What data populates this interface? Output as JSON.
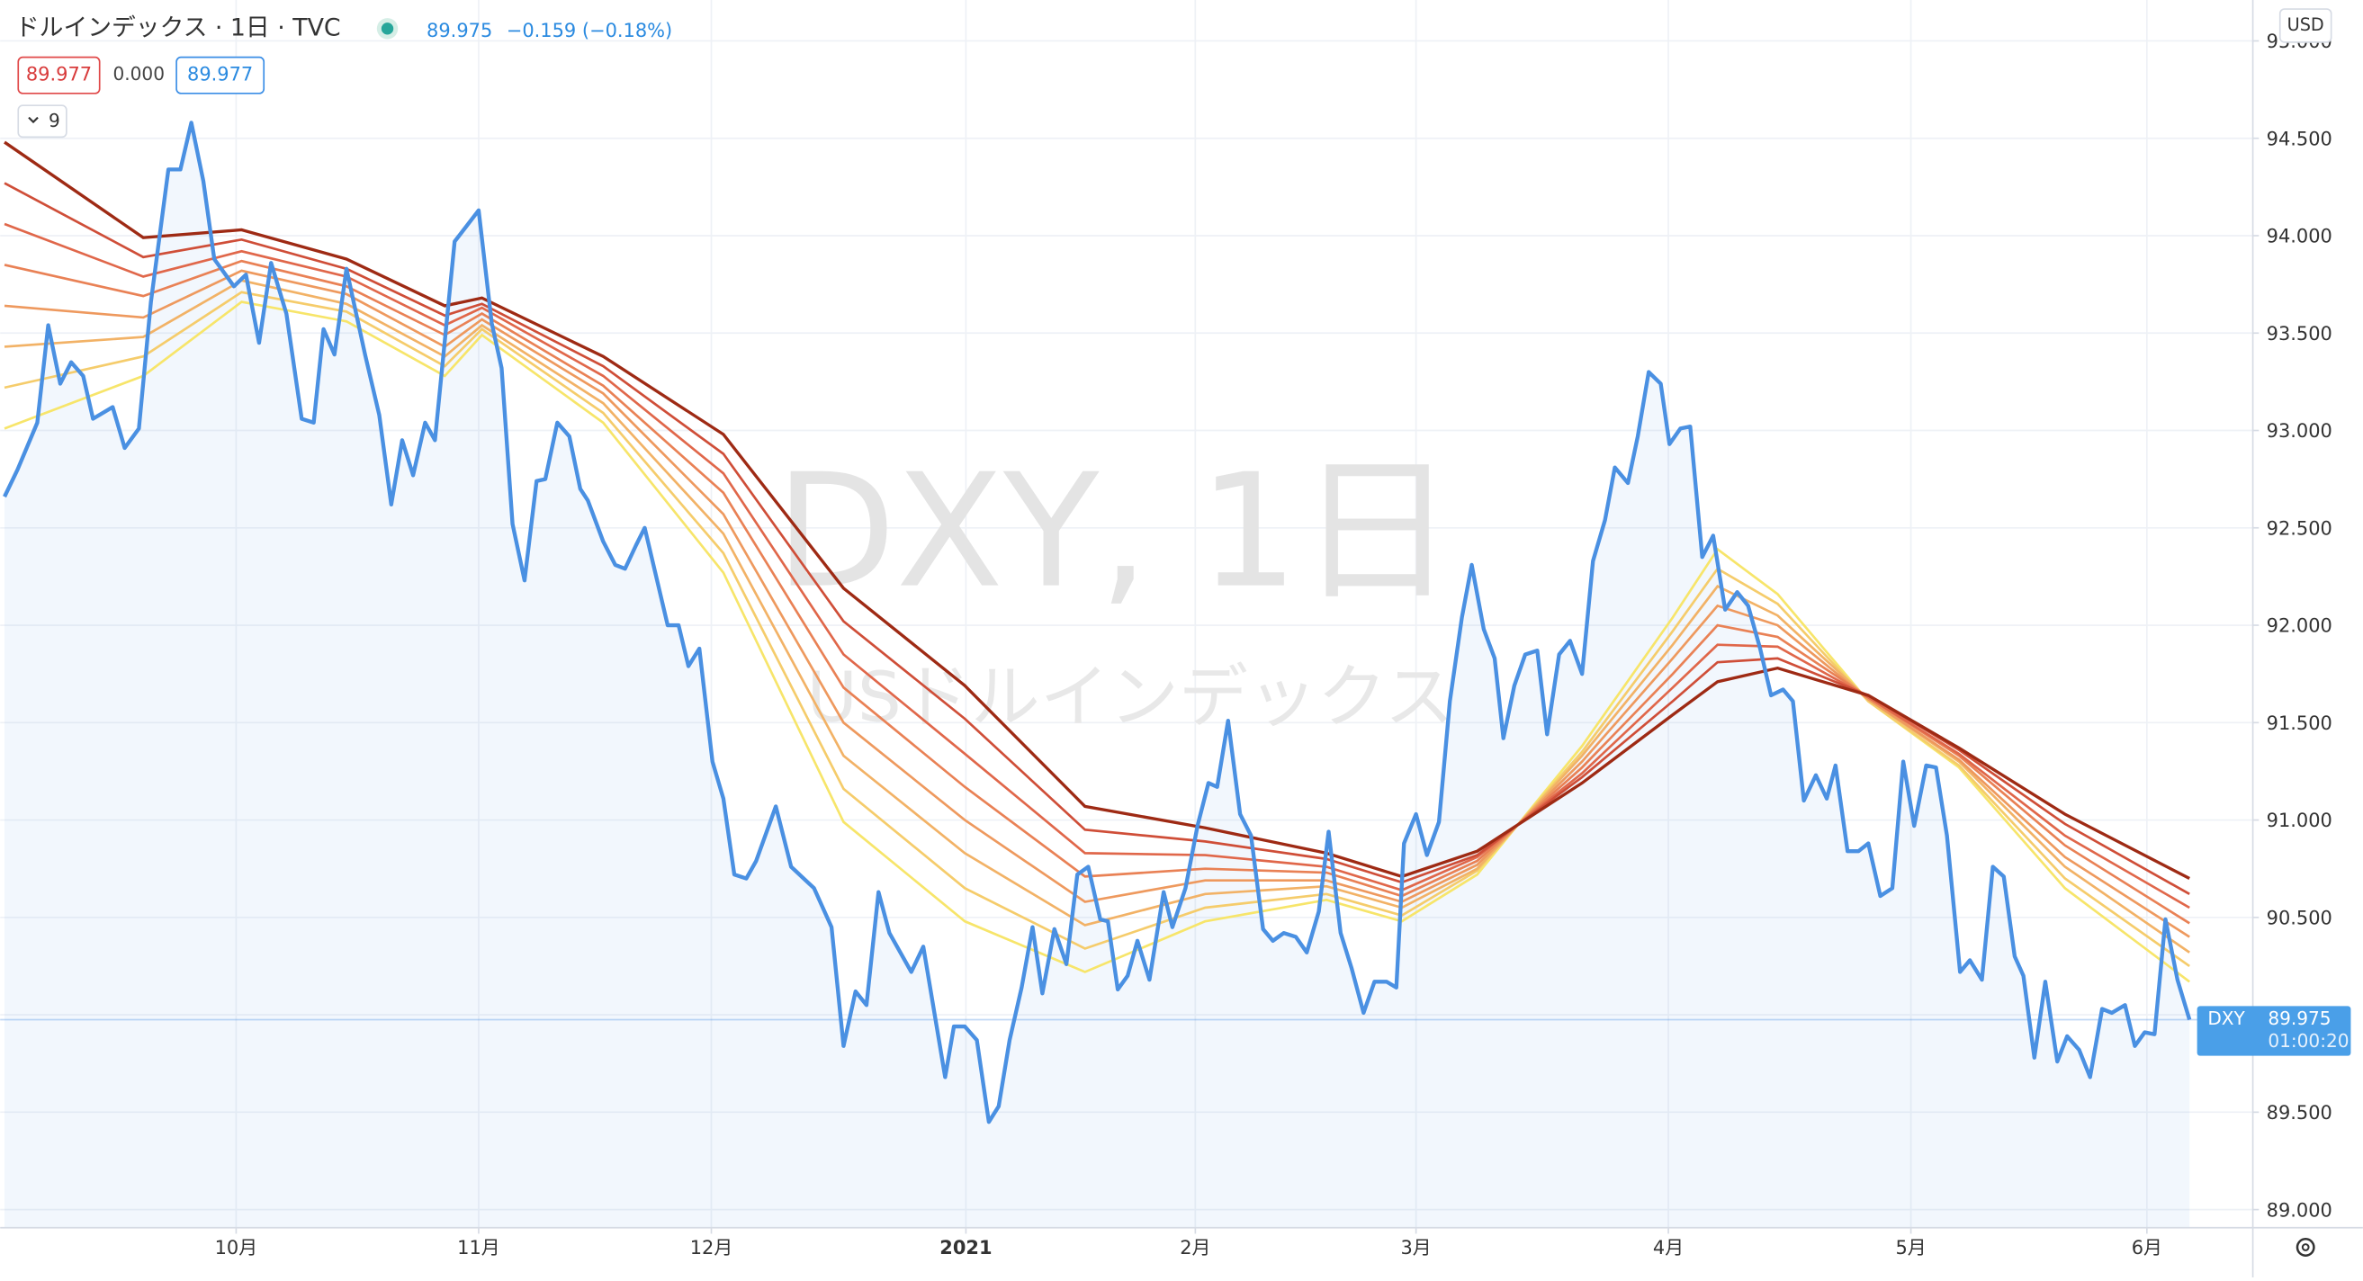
{
  "chart_data": {
    "type": "line",
    "title": "ドルインデックス · 1日 · TVC",
    "change": "−0.159 (−0.18%)",
    "indicator_values": [
      "89.977",
      "0.000",
      "89.977"
    ],
    "indicator_count": "9",
    "currency": "USD",
    "watermark": "DXY, 1日",
    "watermark_sub": "USドルインデックス",
    "countdown": "01:00:20",
    "grid": true,
    "xlim": [
      -0.4,
      205.8
    ],
    "xticks": [
      {
        "value": 21.2,
        "label": "10月"
      },
      {
        "value": 43.4,
        "label": "11月"
      },
      {
        "value": 64.7,
        "label": "12月"
      },
      {
        "value": 88.0,
        "label": "2021"
      },
      {
        "value": 109.0,
        "label": "2月"
      },
      {
        "value": 129.2,
        "label": "3月"
      },
      {
        "value": 152.3,
        "label": "4月"
      },
      {
        "value": 174.5,
        "label": "5月"
      },
      {
        "value": 196.1,
        "label": "6月"
      }
    ],
    "ylim": [
      88.907,
      95.21
    ],
    "yticks": [
      {
        "value": 89,
        "label": "89.000"
      },
      {
        "value": 89.5,
        "label": "89.500"
      },
      {
        "value": 90,
        "label": "90.000"
      },
      {
        "value": 90.5,
        "label": "90.500"
      },
      {
        "value": 91,
        "label": "91.000"
      },
      {
        "value": 91.5,
        "label": "91.500"
      },
      {
        "value": 92,
        "label": "92.000"
      },
      {
        "value": 92.5,
        "label": "92.500"
      },
      {
        "value": 93,
        "label": "93.000"
      },
      {
        "value": 93.5,
        "label": "93.500"
      },
      {
        "value": 94,
        "label": "94.000"
      },
      {
        "value": 94.5,
        "label": "94.500"
      },
      {
        "value": 95,
        "label": "95.000"
      }
    ],
    "series": [
      {
        "name": "DXY",
        "color": "#4a90e2",
        "x": [
          0,
          1.2,
          3.0,
          4.0,
          5.1,
          6.1,
          7.2,
          8.1,
          9.9,
          11.0,
          12.3,
          13.4,
          15.0,
          16.1,
          17.1,
          18.2,
          19.2,
          21.0,
          22.1,
          23.3,
          24.4,
          25.8,
          27.2,
          28.3,
          29.2,
          30.2,
          31.3,
          33.0,
          34.3,
          35.4,
          36.4,
          37.4,
          38.5,
          39.4,
          41.2,
          43.4,
          44.6,
          45.5,
          46.5,
          47.6,
          48.7,
          49.5,
          50.6,
          51.7,
          52.7,
          53.4,
          54.8,
          55.9,
          56.8,
          57.8,
          58.6,
          60.7,
          61.7,
          62.6,
          63.6,
          64.8,
          65.8,
          66.8,
          67.9,
          68.8,
          70.6,
          72.0,
          74.1,
          75.7,
          76.8,
          77.9,
          78.9,
          80.0,
          81.0,
          83.0,
          84.1,
          86.1,
          86.9,
          87.9,
          89.0,
          90.1,
          91.0,
          92.0,
          93.1,
          94.1,
          95.0,
          96.1,
          97.2,
          98.2,
          99.2,
          100.3,
          101.0,
          101.9,
          102.8,
          103.7,
          104.8,
          106.1,
          106.9,
          108.1,
          109.2,
          110.2,
          111.0,
          112.0,
          113.1,
          114.1,
          115.2,
          116.1,
          117.1,
          118.2,
          119.2,
          120.3,
          121.2,
          122.3,
          123.3,
          124.4,
          125.4,
          126.5,
          127.4,
          128.1,
          129.2,
          130.2,
          131.3,
          132.3,
          133.4,
          134.3,
          135.4,
          136.4,
          137.2,
          138.2,
          139.2,
          140.3,
          141.2,
          142.3,
          143.3,
          144.4,
          145.4,
          146.5,
          147.4,
          148.6,
          149.5,
          150.5,
          151.6,
          152.4,
          153.4,
          154.3,
          155.4,
          156.4,
          157.5,
          158.6,
          159.6,
          160.7,
          161.7,
          162.8,
          163.7,
          164.7,
          165.8,
          166.8,
          167.6,
          168.7,
          169.7,
          170.6,
          171.7,
          172.8,
          173.8,
          174.8,
          175.9,
          176.8,
          177.8,
          179.0,
          179.9,
          181.0,
          182.0,
          183.0,
          184.0,
          184.8,
          185.8,
          186.8,
          187.9,
          188.8,
          189.9,
          190.9,
          192.0,
          192.9,
          194.1,
          195.0,
          195.9,
          196.8,
          197.8,
          198.9,
          200.0
        ],
        "values": [
          92.66,
          92.8,
          93.04,
          93.54,
          93.24,
          93.35,
          93.28,
          93.06,
          93.12,
          92.91,
          93.01,
          93.66,
          94.34,
          94.34,
          94.58,
          94.28,
          93.88,
          93.74,
          93.8,
          93.45,
          93.86,
          93.6,
          93.06,
          93.04,
          93.52,
          93.39,
          93.83,
          93.39,
          93.08,
          92.62,
          92.95,
          92.77,
          93.04,
          92.95,
          93.97,
          94.13,
          93.55,
          93.32,
          92.52,
          92.23,
          92.74,
          92.75,
          93.04,
          92.97,
          92.7,
          92.64,
          92.43,
          92.31,
          92.29,
          92.41,
          92.5,
          92.0,
          92.0,
          91.79,
          91.88,
          91.3,
          91.11,
          90.72,
          90.7,
          90.79,
          91.07,
          90.76,
          90.65,
          90.45,
          89.84,
          90.12,
          90.05,
          90.63,
          90.42,
          90.22,
          90.35,
          89.68,
          89.94,
          89.94,
          89.87,
          89.45,
          89.53,
          89.87,
          90.14,
          90.45,
          90.11,
          90.44,
          90.26,
          90.72,
          90.76,
          90.49,
          90.48,
          90.13,
          90.2,
          90.38,
          90.18,
          90.63,
          90.45,
          90.65,
          90.97,
          91.19,
          91.17,
          91.51,
          91.03,
          90.92,
          90.44,
          90.38,
          90.42,
          90.4,
          90.32,
          90.53,
          90.94,
          90.42,
          90.24,
          90.01,
          90.17,
          90.17,
          90.14,
          90.88,
          91.03,
          90.82,
          90.99,
          91.61,
          92.04,
          92.31,
          91.98,
          91.83,
          91.42,
          91.69,
          91.85,
          91.87,
          91.44,
          91.85,
          91.92,
          91.75,
          92.33,
          92.54,
          92.81,
          92.73,
          92.97,
          93.3,
          93.24,
          92.93,
          93.01,
          93.02,
          92.35,
          92.46,
          92.08,
          92.17,
          92.1,
          91.88,
          91.64,
          91.67,
          91.61,
          91.1,
          91.23,
          91.11,
          91.28,
          90.84,
          90.84,
          90.88,
          90.61,
          90.65,
          91.3,
          90.97,
          91.28,
          91.27,
          90.92,
          90.22,
          90.28,
          90.18,
          90.76,
          90.71,
          90.3,
          90.2,
          89.78,
          90.17,
          89.76,
          89.89,
          89.82,
          89.68,
          90.03,
          90.01,
          90.05,
          89.84,
          89.91,
          89.9,
          90.49,
          90.18,
          89.975
        ]
      },
      {
        "color": "#f7e56a",
        "x": [
          0,
          12.7,
          21.7,
          31.3,
          40.3,
          43.7,
          54.8,
          65.8,
          76.8,
          87.9,
          98.9,
          109.9,
          121.0,
          127.9,
          134.8,
          144.4,
          152.7,
          156.8,
          162.3,
          170.6,
          178.9,
          188.6,
          200
        ],
        "values": [
          93.01,
          93.28,
          93.66,
          93.56,
          93.28,
          93.49,
          93.04,
          92.27,
          90.99,
          90.48,
          90.22,
          90.48,
          90.59,
          90.48,
          90.72,
          91.38,
          92.04,
          92.39,
          92.16,
          91.61,
          91.27,
          90.65,
          90.17
        ]
      },
      {
        "color": "#f5cc6b",
        "x": [
          0,
          12.7,
          21.7,
          31.3,
          40.3,
          43.7,
          54.8,
          65.8,
          76.8,
          87.9,
          98.9,
          109.9,
          121.0,
          127.9,
          134.8,
          144.4,
          152.7,
          156.8,
          162.3,
          170.6,
          178.9,
          188.6,
          200
        ],
        "values": [
          93.22,
          93.38,
          93.71,
          93.61,
          93.33,
          93.52,
          93.09,
          92.37,
          91.16,
          90.65,
          90.34,
          90.55,
          90.62,
          90.51,
          90.74,
          91.35,
          91.97,
          92.29,
          92.11,
          91.61,
          91.28,
          90.7,
          90.25
        ]
      },
      {
        "color": "#f2b266",
        "x": [
          0,
          12.7,
          21.7,
          31.3,
          40.3,
          43.7,
          54.8,
          65.8,
          76.8,
          87.9,
          98.9,
          109.9,
          121.0,
          127.9,
          134.8,
          144.4,
          152.7,
          156.8,
          162.3,
          170.6,
          178.9,
          188.6,
          200
        ],
        "values": [
          93.43,
          93.48,
          93.77,
          93.65,
          93.38,
          93.54,
          93.14,
          92.47,
          91.33,
          90.83,
          90.46,
          90.62,
          90.66,
          90.55,
          90.75,
          91.33,
          91.9,
          92.2,
          92.05,
          91.62,
          91.3,
          90.76,
          90.32
        ]
      },
      {
        "color": "#ee995e",
        "x": [
          0,
          12.7,
          21.7,
          31.3,
          40.3,
          43.7,
          54.8,
          65.8,
          76.8,
          87.9,
          98.9,
          109.9,
          121.0,
          127.9,
          134.8,
          144.4,
          152.7,
          156.8,
          162.3,
          170.6,
          178.9,
          188.6,
          200
        ],
        "values": [
          93.64,
          93.58,
          93.82,
          93.7,
          93.43,
          93.57,
          93.19,
          92.57,
          91.5,
          91.0,
          90.58,
          90.69,
          90.69,
          90.58,
          90.77,
          91.3,
          91.83,
          92.1,
          92.0,
          91.62,
          91.31,
          90.81,
          90.4
        ]
      },
      {
        "color": "#e98155",
        "x": [
          0,
          12.7,
          21.7,
          31.3,
          40.3,
          43.7,
          54.8,
          65.8,
          76.8,
          87.9,
          98.9,
          109.9,
          121.0,
          127.9,
          134.8,
          144.4,
          152.7,
          156.8,
          162.3,
          170.6,
          178.9,
          188.6,
          200
        ],
        "values": [
          93.85,
          93.69,
          93.87,
          93.74,
          93.49,
          93.6,
          93.23,
          92.68,
          91.68,
          91.17,
          90.71,
          90.75,
          90.73,
          90.61,
          90.79,
          91.27,
          91.75,
          92.0,
          91.94,
          91.63,
          91.33,
          90.87,
          90.47
        ]
      },
      {
        "color": "#e0674a",
        "x": [
          0,
          12.7,
          21.7,
          31.3,
          40.3,
          43.7,
          54.8,
          65.8,
          76.8,
          87.9,
          98.9,
          109.9,
          121.0,
          127.9,
          134.8,
          144.4,
          152.7,
          156.8,
          162.3,
          170.6,
          178.9,
          188.6,
          200
        ],
        "values": [
          94.06,
          93.79,
          93.92,
          93.79,
          93.54,
          93.63,
          93.28,
          92.78,
          91.85,
          91.34,
          90.83,
          90.82,
          90.76,
          90.64,
          90.81,
          91.24,
          91.68,
          91.9,
          91.89,
          91.63,
          91.34,
          90.92,
          90.55
        ]
      },
      {
        "color": "#cf4e38",
        "x": [
          0,
          12.7,
          21.7,
          31.3,
          40.3,
          43.7,
          54.8,
          65.8,
          76.8,
          87.9,
          98.9,
          109.9,
          121.0,
          127.9,
          134.8,
          144.4,
          152.7,
          156.8,
          162.3,
          170.6,
          178.9,
          188.6,
          200
        ],
        "values": [
          94.27,
          93.89,
          93.98,
          93.83,
          93.59,
          93.65,
          93.33,
          92.88,
          92.02,
          91.52,
          90.95,
          90.89,
          90.8,
          90.68,
          90.82,
          91.22,
          91.61,
          91.81,
          91.83,
          91.64,
          91.36,
          90.98,
          90.62
        ]
      },
      {
        "color": "#9e2a14",
        "x": [
          0,
          12.7,
          21.7,
          31.3,
          40.3,
          43.7,
          54.8,
          65.8,
          76.8,
          87.9,
          98.9,
          109.9,
          121.0,
          127.9,
          134.8,
          144.4,
          152.7,
          156.8,
          162.3,
          170.6,
          178.9,
          188.6,
          200
        ],
        "values": [
          94.48,
          93.99,
          94.03,
          93.88,
          93.64,
          93.68,
          93.38,
          92.98,
          92.19,
          91.69,
          91.07,
          90.96,
          90.83,
          90.71,
          90.84,
          91.19,
          91.54,
          91.71,
          91.78,
          91.64,
          91.37,
          91.03,
          90.7
        ]
      }
    ]
  }
}
